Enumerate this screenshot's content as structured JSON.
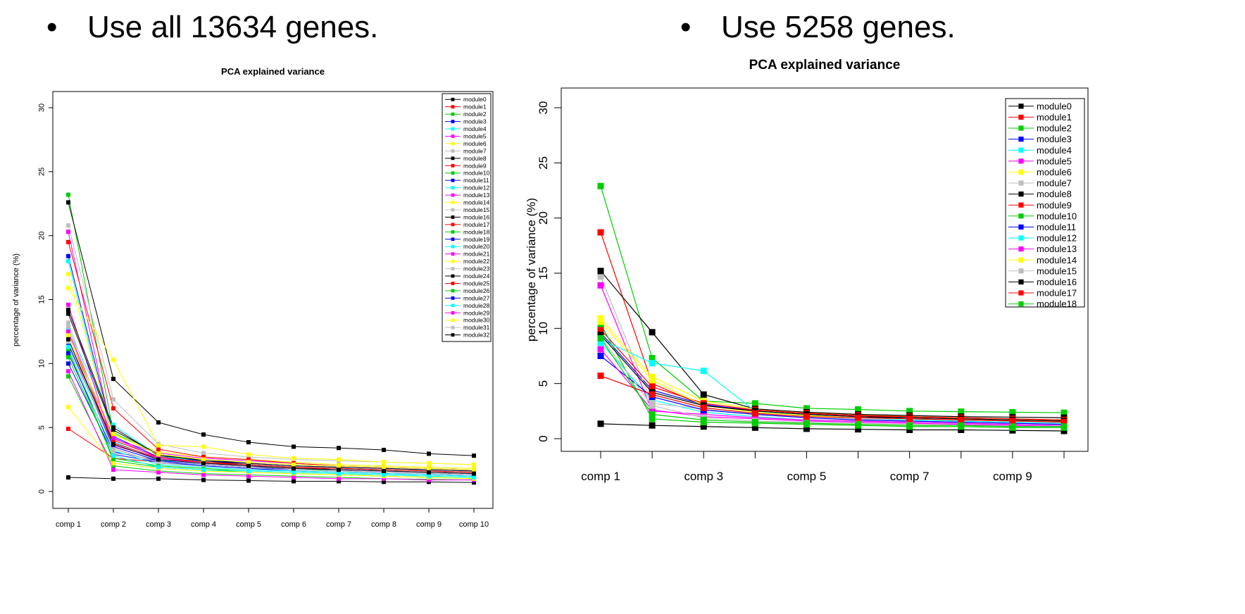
{
  "headings": {
    "left": "Use all 13634 genes.",
    "right": "Use 5258 genes.",
    "bullet": "•"
  },
  "chart_data": [
    {
      "type": "line",
      "title": "PCA explained variance",
      "xlabel": "",
      "ylabel": "percentage of variance (%)",
      "ylim": [
        0,
        30
      ],
      "yticks": [
        0,
        5,
        10,
        15,
        20,
        25,
        30
      ],
      "categories": [
        "comp 1",
        "comp 2",
        "comp 3",
        "comp 4",
        "comp 5",
        "comp 6",
        "comp 7",
        "comp 8",
        "comp 9",
        "comp 10"
      ],
      "xtick_labels": [
        "comp 1",
        "comp 2",
        "comp 3",
        "comp 4",
        "comp 5",
        "comp 6",
        "comp 7",
        "comp 8",
        "comp 9",
        "comp 10"
      ],
      "legend_position": "top-right",
      "grid": false,
      "marker": "square",
      "palette": [
        "#000000",
        "#ff0000",
        "#00cd00",
        "#0000ff",
        "#00ffff",
        "#ff00ff",
        "#ffff00",
        "#bebebe"
      ],
      "series": [
        {
          "name": "module0",
          "values": [
            1.1,
            1.0,
            1.0,
            0.9,
            0.85,
            0.8,
            0.8,
            0.75,
            0.75,
            0.7
          ]
        },
        {
          "name": "module1",
          "values": [
            4.9,
            2.6,
            2.3,
            2.1,
            1.9,
            1.8,
            1.7,
            1.6,
            1.5,
            1.4
          ]
        },
        {
          "name": "module2",
          "values": [
            23.2,
            4.6,
            2.9,
            2.3,
            2.0,
            1.8,
            1.6,
            1.5,
            1.4,
            1.3
          ]
        },
        {
          "name": "module3",
          "values": [
            18.4,
            4.3,
            2.7,
            2.4,
            2.2,
            2.0,
            1.9,
            1.8,
            1.7,
            1.6
          ]
        },
        {
          "name": "module4",
          "values": [
            18.0,
            3.9,
            2.5,
            2.0,
            1.8,
            1.6,
            1.5,
            1.4,
            1.3,
            1.2
          ]
        },
        {
          "name": "module5",
          "values": [
            20.3,
            4.1,
            3.0,
            2.6,
            2.4,
            2.2,
            2.0,
            1.9,
            1.8,
            1.7
          ]
        },
        {
          "name": "module6",
          "values": [
            17.0,
            4.4,
            3.1,
            2.7,
            2.5,
            2.3,
            2.1,
            2.0,
            1.9,
            1.8
          ]
        },
        {
          "name": "module7",
          "values": [
            20.8,
            7.2,
            3.7,
            3.0,
            2.7,
            2.5,
            2.4,
            2.3,
            2.2,
            2.1
          ]
        },
        {
          "name": "module8",
          "values": [
            22.6,
            8.8,
            5.4,
            4.45,
            3.85,
            3.5,
            3.4,
            3.25,
            2.95,
            2.8
          ]
        },
        {
          "name": "module9",
          "values": [
            19.5,
            6.5,
            3.3,
            2.7,
            2.5,
            2.2,
            2.0,
            1.9,
            1.8,
            1.7
          ]
        },
        {
          "name": "module10",
          "values": [
            11.1,
            2.4,
            1.9,
            1.7,
            1.5,
            1.4,
            1.3,
            1.2,
            1.1,
            1.0
          ]
        },
        {
          "name": "module11",
          "values": [
            10.8,
            3.1,
            2.4,
            2.1,
            1.9,
            1.7,
            1.6,
            1.5,
            1.4,
            1.3
          ]
        },
        {
          "name": "module12",
          "values": [
            12.7,
            5.2,
            2.8,
            2.3,
            2.1,
            1.9,
            1.8,
            1.7,
            1.6,
            1.5
          ]
        },
        {
          "name": "module13",
          "values": [
            14.6,
            3.6,
            2.6,
            2.2,
            2.0,
            1.8,
            1.7,
            1.6,
            1.5,
            1.4
          ]
        },
        {
          "name": "module14",
          "values": [
            15.9,
            10.3,
            3.6,
            3.5,
            2.9,
            2.6,
            2.5,
            2.3,
            2.2,
            2.1
          ]
        },
        {
          "name": "module15",
          "values": [
            13.2,
            3.4,
            2.2,
            2.0,
            1.8,
            1.7,
            1.6,
            1.5,
            1.4,
            1.3
          ]
        },
        {
          "name": "module16",
          "values": [
            14.2,
            5.0,
            2.8,
            2.5,
            2.2,
            2.0,
            1.9,
            1.8,
            1.7,
            1.6
          ]
        },
        {
          "name": "module17",
          "values": [
            12.3,
            3.8,
            2.6,
            2.3,
            2.0,
            1.9,
            1.7,
            1.6,
            1.5,
            1.4
          ]
        },
        {
          "name": "module18",
          "values": [
            9.0,
            2.0,
            1.6,
            1.4,
            1.3,
            1.2,
            1.1,
            1.0,
            0.95,
            0.9
          ]
        },
        {
          "name": "module19",
          "values": [
            10.0,
            2.9,
            2.3,
            2.0,
            1.8,
            1.6,
            1.5,
            1.4,
            1.3,
            1.2
          ]
        },
        {
          "name": "module20",
          "values": [
            12.0,
            3.2,
            2.1,
            1.9,
            1.7,
            1.6,
            1.5,
            1.4,
            1.3,
            1.2
          ]
        },
        {
          "name": "module21",
          "values": [
            9.4,
            1.7,
            1.5,
            1.3,
            1.2,
            1.1,
            1.0,
            1.0,
            0.9,
            0.9
          ]
        },
        {
          "name": "module22",
          "values": [
            6.6,
            2.2,
            1.8,
            1.6,
            1.5,
            1.4,
            1.3,
            1.2,
            1.1,
            1.0
          ]
        },
        {
          "name": "module23",
          "values": [
            12.9,
            3.0,
            2.5,
            2.2,
            2.0,
            1.9,
            1.8,
            1.7,
            1.6,
            1.5
          ]
        },
        {
          "name": "module24",
          "values": [
            13.9,
            4.8,
            2.9,
            2.4,
            2.1,
            1.9,
            1.8,
            1.7,
            1.6,
            1.5
          ]
        },
        {
          "name": "module25",
          "values": [
            11.6,
            4.0,
            2.7,
            2.3,
            2.1,
            1.9,
            1.8,
            1.7,
            1.6,
            1.5
          ]
        },
        {
          "name": "module26",
          "values": [
            10.5,
            2.6,
            2.0,
            1.8,
            1.6,
            1.5,
            1.4,
            1.3,
            1.2,
            1.1
          ]
        },
        {
          "name": "module27",
          "values": [
            11.5,
            3.5,
            2.4,
            2.1,
            1.9,
            1.8,
            1.7,
            1.6,
            1.5,
            1.4
          ]
        },
        {
          "name": "module28",
          "values": [
            11.3,
            2.8,
            1.9,
            1.7,
            1.6,
            1.5,
            1.4,
            1.3,
            1.2,
            1.1
          ]
        },
        {
          "name": "module29",
          "values": [
            12.5,
            4.2,
            2.6,
            2.2,
            2.0,
            1.8,
            1.7,
            1.6,
            1.5,
            1.4
          ]
        },
        {
          "name": "module30",
          "values": [
            12.2,
            4.5,
            2.9,
            2.5,
            2.3,
            2.1,
            2.0,
            1.9,
            1.8,
            1.7
          ]
        },
        {
          "name": "module31",
          "values": [
            11.7,
            3.3,
            2.3,
            2.1,
            1.9,
            1.8,
            1.7,
            1.6,
            1.5,
            1.4
          ]
        },
        {
          "name": "module32",
          "values": [
            11.9,
            3.7,
            2.5,
            2.2,
            2.0,
            1.8,
            1.7,
            1.6,
            1.5,
            1.4
          ]
        }
      ]
    },
    {
      "type": "line",
      "title": "PCA explained variance",
      "xlabel": "",
      "ylabel": "percentage of variance (%)",
      "ylim": [
        0,
        30
      ],
      "yticks": [
        0,
        5,
        10,
        15,
        20,
        25,
        30
      ],
      "categories": [
        "comp 1",
        "comp 2",
        "comp 3",
        "comp 4",
        "comp 5",
        "comp 6",
        "comp 7",
        "comp 8",
        "comp 9",
        "comp 10"
      ],
      "xtick_labels": [
        "comp 1",
        "",
        "comp 3",
        "",
        "comp 5",
        "",
        "comp 7",
        "",
        "comp 9",
        ""
      ],
      "legend_position": "top-right",
      "grid": false,
      "marker": "square",
      "palette": [
        "#000000",
        "#ff0000",
        "#00cd00",
        "#0000ff",
        "#00ffff",
        "#ff00ff",
        "#ffff00",
        "#bebebe"
      ],
      "series": [
        {
          "name": "module0",
          "values": [
            1.35,
            1.2,
            1.1,
            1.0,
            0.9,
            0.85,
            0.8,
            0.8,
            0.75,
            0.7
          ]
        },
        {
          "name": "module1",
          "values": [
            18.7,
            5.0,
            3.0,
            2.6,
            2.3,
            2.1,
            1.9,
            1.8,
            1.7,
            1.6
          ]
        },
        {
          "name": "module2",
          "values": [
            22.9,
            7.3,
            3.4,
            3.2,
            2.75,
            2.65,
            2.5,
            2.45,
            2.4,
            2.35
          ]
        },
        {
          "name": "module3",
          "values": [
            9.6,
            4.4,
            3.1,
            2.5,
            2.2,
            2.0,
            1.8,
            1.7,
            1.6,
            1.5
          ]
        },
        {
          "name": "module4",
          "values": [
            8.7,
            3.5,
            2.4,
            2.0,
            1.7,
            1.6,
            1.5,
            1.4,
            1.3,
            1.2
          ]
        },
        {
          "name": "module5",
          "values": [
            13.9,
            2.5,
            2.2,
            1.9,
            1.7,
            1.6,
            1.5,
            1.4,
            1.3,
            1.2
          ]
        },
        {
          "name": "module6",
          "values": [
            10.9,
            5.6,
            3.4,
            2.7,
            2.4,
            2.2,
            2.0,
            1.9,
            1.8,
            1.7
          ]
        },
        {
          "name": "module7",
          "values": [
            14.7,
            3.2,
            2.7,
            2.2,
            1.9,
            1.8,
            1.6,
            1.5,
            1.4,
            1.3
          ]
        },
        {
          "name": "module8",
          "values": [
            15.2,
            9.65,
            4.0,
            2.7,
            2.4,
            2.2,
            2.1,
            2.0,
            1.95,
            1.9
          ]
        },
        {
          "name": "module9",
          "values": [
            9.9,
            4.7,
            3.2,
            2.6,
            2.3,
            2.1,
            2.0,
            1.9,
            1.8,
            1.7
          ]
        },
        {
          "name": "module10",
          "values": [
            10.4,
            1.8,
            1.5,
            1.4,
            1.3,
            1.2,
            1.1,
            1.1,
            1.0,
            1.0
          ]
        },
        {
          "name": "module11",
          "values": [
            7.5,
            3.8,
            2.6,
            2.2,
            1.9,
            1.7,
            1.6,
            1.5,
            1.4,
            1.3
          ]
        },
        {
          "name": "module12",
          "values": [
            9.0,
            6.85,
            6.15,
            2.5,
            2.1,
            1.9,
            1.7,
            1.6,
            1.5,
            1.4
          ]
        },
        {
          "name": "module13",
          "values": [
            8.1,
            2.6,
            2.0,
            1.8,
            1.6,
            1.5,
            1.4,
            1.3,
            1.2,
            1.1
          ]
        },
        {
          "name": "module14",
          "values": [
            10.6,
            5.3,
            3.0,
            2.4,
            2.1,
            1.9,
            1.8,
            1.7,
            1.6,
            1.5
          ]
        },
        {
          "name": "module15",
          "values": [
            9.2,
            3.0,
            1.9,
            1.6,
            1.5,
            1.4,
            1.3,
            1.2,
            1.1,
            1.1
          ]
        },
        {
          "name": "module16",
          "values": [
            9.4,
            4.2,
            3.0,
            2.5,
            2.2,
            2.0,
            1.9,
            1.8,
            1.7,
            1.6
          ]
        },
        {
          "name": "module17",
          "values": [
            5.7,
            4.0,
            2.8,
            2.3,
            2.0,
            1.9,
            1.8,
            1.7,
            1.6,
            1.5
          ]
        },
        {
          "name": "module18",
          "values": [
            9.1,
            2.2,
            1.7,
            1.5,
            1.4,
            1.3,
            1.2,
            1.2,
            1.1,
            1.1
          ]
        }
      ]
    }
  ]
}
